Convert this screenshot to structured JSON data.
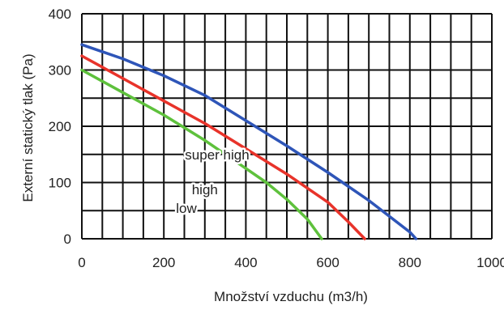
{
  "chart_data": {
    "type": "line",
    "title": "",
    "xlabel": "Množství vzduchu (m3/h)",
    "ylabel": "Externí statický tlak (Pa)",
    "xlim": [
      0,
      1000
    ],
    "ylim": [
      0,
      400
    ],
    "x_ticks": [
      "0",
      "200",
      "400",
      "600",
      "800",
      "1000"
    ],
    "y_ticks": [
      "0",
      "100",
      "200",
      "300",
      "400"
    ],
    "grid": true,
    "series": [
      {
        "name": "super high",
        "color": "#2e55b8",
        "x": [
          0,
          100,
          200,
          300,
          400,
          500,
          600,
          700,
          800,
          815
        ],
        "y": [
          345,
          320,
          290,
          255,
          210,
          165,
          118,
          68,
          12,
          0
        ]
      },
      {
        "name": "high",
        "color": "#e8332a",
        "x": [
          0,
          100,
          200,
          300,
          400,
          500,
          600,
          650,
          690
        ],
        "y": [
          325,
          285,
          245,
          205,
          160,
          115,
          65,
          30,
          0
        ]
      },
      {
        "name": "low",
        "color": "#5ec13c",
        "x": [
          0,
          100,
          200,
          300,
          400,
          450,
          500,
          550,
          585
        ],
        "y": [
          300,
          260,
          220,
          175,
          125,
          100,
          70,
          35,
          0
        ]
      }
    ]
  }
}
